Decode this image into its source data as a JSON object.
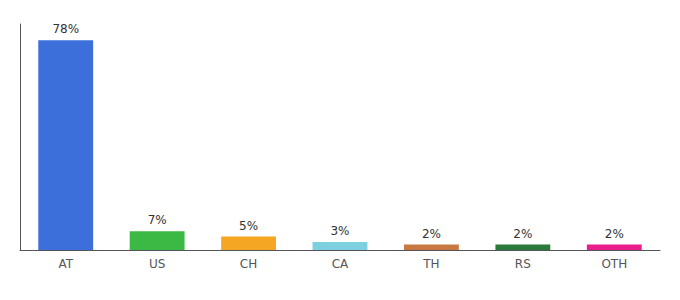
{
  "chart_data": {
    "type": "bar",
    "categories": [
      "AT",
      "US",
      "CH",
      "CA",
      "TH",
      "RS",
      "OTH"
    ],
    "values": [
      78,
      7,
      5,
      3,
      2,
      2,
      2
    ],
    "value_labels": [
      "78%",
      "7%",
      "5%",
      "3%",
      "2%",
      "2%",
      "2%"
    ],
    "colors": [
      "#3d6fdb",
      "#3cb844",
      "#f5a623",
      "#7ecfe0",
      "#c87941",
      "#2a7a3b",
      "#e91e8c"
    ],
    "ylim": [
      0,
      84
    ],
    "data_labels": true,
    "tick_labels": "x",
    "grid": false
  }
}
